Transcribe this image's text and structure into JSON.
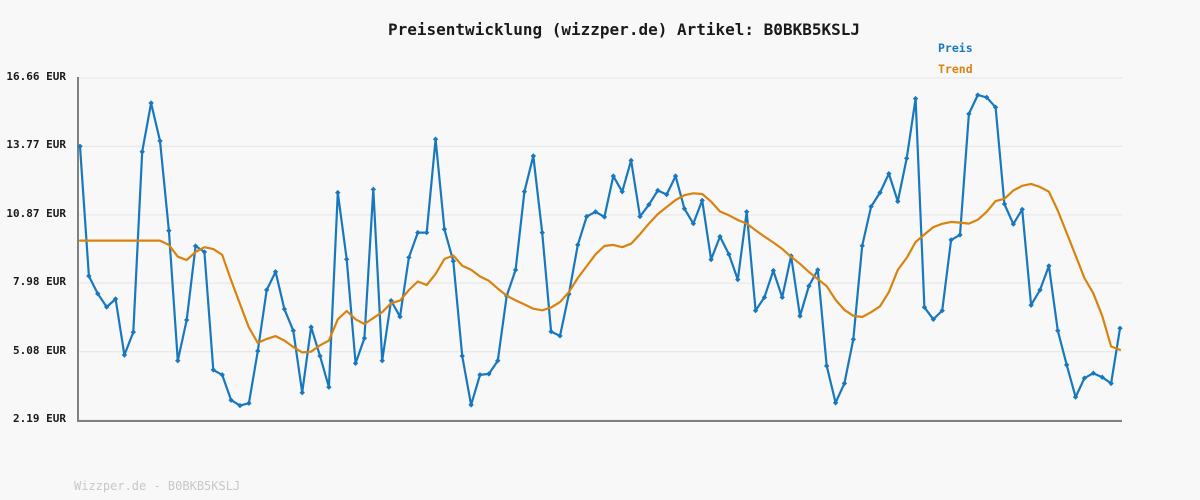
{
  "title": "Preisentwicklung (wizzper.de) Artikel: B0BKB5KSLJ",
  "watermark": "Wizzper.de - B0BKB5KSLJ",
  "colors": {
    "preis": "#1878be",
    "trend": "#d9830f",
    "grid": "#e4e4e4",
    "axis": "#808080",
    "text": "#1a1a1a",
    "watermark": "#c8c8c8",
    "background": "#f8f8f8"
  },
  "chart_data": {
    "type": "line",
    "title": "Preisentwicklung (wizzper.de) Artikel: B0BKB5KSLJ",
    "xlabel": "",
    "ylabel": "",
    "x_tick_labels": [],
    "num_points": 118,
    "ylim": [
      2.19,
      16.66
    ],
    "y_ticks": [
      16.66,
      13.77,
      10.87,
      7.98,
      5.08,
      2.19
    ],
    "y_tick_labels": [
      "16.66 EUR",
      "13.77 EUR",
      "10.87 EUR",
      "7.98 EUR",
      "5.08 EUR",
      "2.19 EUR"
    ],
    "grid": true,
    "legend_position": "top-right",
    "series": [
      {
        "name": "Preis",
        "color": "#1878be",
        "marker": "diamond",
        "values": [
          13.77,
          8.28,
          7.53,
          6.97,
          7.31,
          4.94,
          5.91,
          13.54,
          15.6,
          14.0,
          10.2,
          4.7,
          6.42,
          9.55,
          9.3,
          4.31,
          4.1,
          3.03,
          2.8,
          2.9,
          5.11,
          7.69,
          8.46,
          6.88,
          5.97,
          3.35,
          6.12,
          4.9,
          3.58,
          11.81,
          8.99,
          4.59,
          5.65,
          11.95,
          4.7,
          7.24,
          6.56,
          9.07,
          10.12,
          10.12,
          14.07,
          10.26,
          8.91,
          4.9,
          2.83,
          4.1,
          4.14,
          4.7,
          7.44,
          8.54,
          11.85,
          13.36,
          10.12,
          5.93,
          5.75,
          7.52,
          9.6,
          10.8,
          11.0,
          10.78,
          12.51,
          11.85,
          13.17,
          10.8,
          11.3,
          11.9,
          11.73,
          12.51,
          11.13,
          10.5,
          11.48,
          8.98,
          9.95,
          9.2,
          8.13,
          11.0,
          6.82,
          7.38,
          8.51,
          7.38,
          9.13,
          6.59,
          7.86,
          8.54,
          4.48,
          2.92,
          3.74,
          5.6,
          9.56,
          11.22,
          11.81,
          12.61,
          11.44,
          13.26,
          15.79,
          6.96,
          6.45,
          6.82,
          9.81,
          10.02,
          15.14,
          15.94,
          15.84,
          15.42,
          11.33,
          10.48,
          11.1,
          7.05,
          7.69,
          8.71,
          5.97,
          4.52,
          3.16,
          3.96,
          4.17,
          4.0,
          3.74,
          6.07
        ]
      },
      {
        "name": "Trend",
        "color": "#d9830f",
        "marker": "none",
        "values": [
          9.78,
          9.78,
          9.78,
          9.78,
          9.78,
          9.78,
          9.78,
          9.78,
          9.78,
          9.78,
          9.6,
          9.1,
          8.96,
          9.3,
          9.5,
          9.42,
          9.18,
          8.1,
          7.1,
          6.1,
          5.45,
          5.62,
          5.74,
          5.55,
          5.28,
          5.05,
          5.08,
          5.35,
          5.55,
          6.45,
          6.8,
          6.45,
          6.25,
          6.5,
          6.75,
          7.13,
          7.24,
          7.69,
          8.05,
          7.9,
          8.37,
          9.0,
          9.15,
          8.72,
          8.55,
          8.26,
          8.08,
          7.75,
          7.45,
          7.25,
          7.08,
          6.9,
          6.83,
          6.95,
          7.18,
          7.6,
          8.2,
          8.7,
          9.2,
          9.55,
          9.6,
          9.5,
          9.65,
          10.05,
          10.5,
          10.9,
          11.2,
          11.5,
          11.7,
          11.78,
          11.75,
          11.43,
          11.01,
          10.85,
          10.65,
          10.5,
          10.22,
          9.95,
          9.7,
          9.43,
          9.1,
          8.8,
          8.45,
          8.15,
          7.85,
          7.27,
          6.85,
          6.6,
          6.55,
          6.75,
          7.0,
          7.6,
          8.54,
          9.05,
          9.72,
          10.04,
          10.35,
          10.49,
          10.57,
          10.54,
          10.5,
          10.66,
          11.0,
          11.45,
          11.55,
          11.9,
          12.1,
          12.18,
          12.05,
          11.85,
          11.05,
          10.1,
          9.15,
          8.2,
          7.55,
          6.6,
          5.3,
          5.16
        ]
      }
    ]
  }
}
